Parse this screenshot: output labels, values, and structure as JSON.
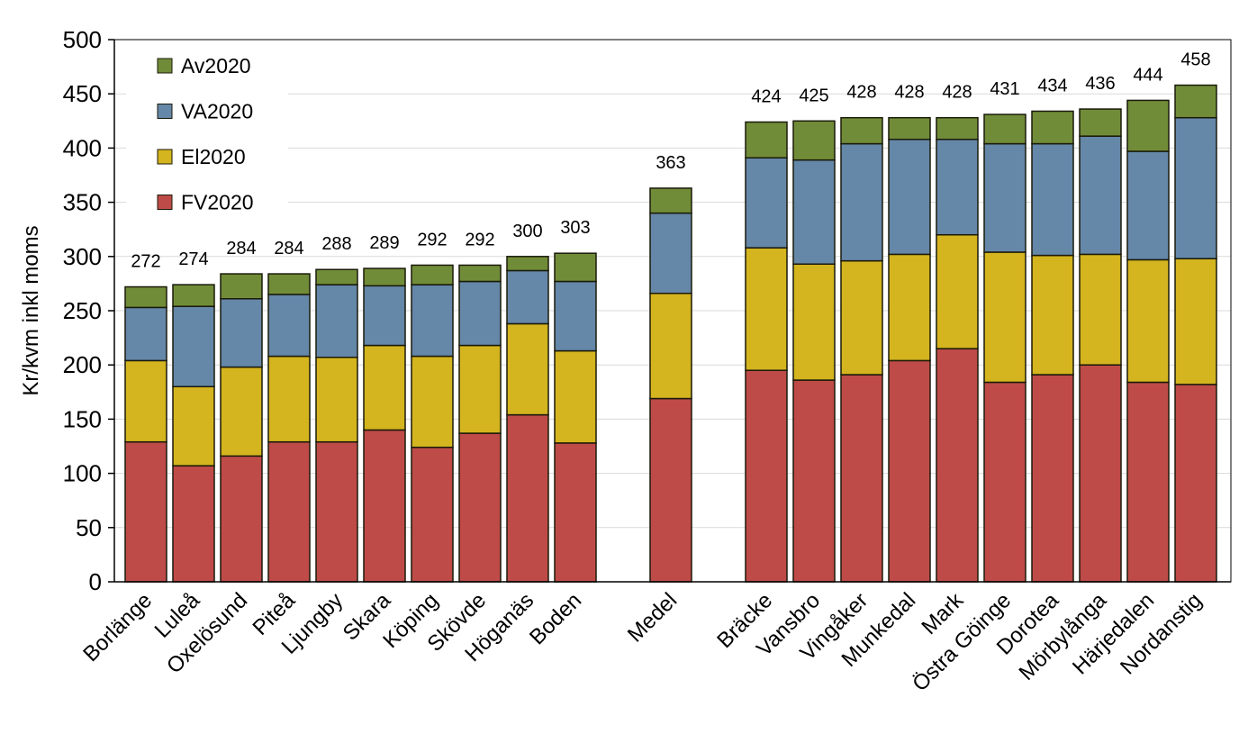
{
  "chart_data": {
    "type": "bar",
    "stacked": true,
    "title": "",
    "xlabel": "",
    "ylabel": "Kr/kvm inkl moms",
    "ylim": [
      0,
      500
    ],
    "yticks": [
      0,
      50,
      100,
      150,
      200,
      250,
      300,
      350,
      400,
      450,
      500
    ],
    "grid": true,
    "legend_placement": "top-left",
    "categories": [
      "Borlänge",
      "Luleå",
      "Oxelösund",
      "Piteå",
      "Ljungby",
      "Skara",
      "Köping",
      "Skövde",
      "Höganäs",
      "Boden",
      "",
      "Medel",
      "",
      "Bräcke",
      "Vansbro",
      "Vingåker",
      "Munkedal",
      "Mark",
      "Östra Göinge",
      "Dorotea",
      "Mörbylånga",
      "Härjedalen",
      "Nordanstig"
    ],
    "totals": [
      272,
      274,
      284,
      284,
      288,
      289,
      292,
      292,
      300,
      303,
      null,
      363,
      null,
      424,
      425,
      428,
      428,
      428,
      431,
      434,
      436,
      444,
      458
    ],
    "series": [
      {
        "name": "FV2020",
        "color": "#be4b48",
        "values": [
          129,
          107,
          116,
          129,
          129,
          140,
          124,
          137,
          154,
          128,
          null,
          169,
          null,
          195,
          186,
          191,
          204,
          215,
          184,
          191,
          200,
          184,
          182
        ]
      },
      {
        "name": "El2020",
        "color": "#d4b41f",
        "values": [
          75,
          73,
          82,
          79,
          78,
          78,
          84,
          81,
          84,
          85,
          null,
          97,
          null,
          113,
          107,
          105,
          98,
          105,
          120,
          110,
          102,
          113,
          116
        ]
      },
      {
        "name": "VA2020",
        "color": "#6587a8",
        "values": [
          49,
          74,
          63,
          57,
          67,
          55,
          66,
          59,
          49,
          64,
          null,
          74,
          null,
          83,
          96,
          108,
          106,
          88,
          100,
          103,
          109,
          100,
          130
        ]
      },
      {
        "name": "Av2020",
        "color": "#718c38",
        "values": [
          19,
          20,
          23,
          19,
          14,
          16,
          18,
          15,
          13,
          26,
          null,
          23,
          null,
          33,
          36,
          24,
          20,
          20,
          27,
          30,
          25,
          47,
          30
        ]
      }
    ]
  }
}
